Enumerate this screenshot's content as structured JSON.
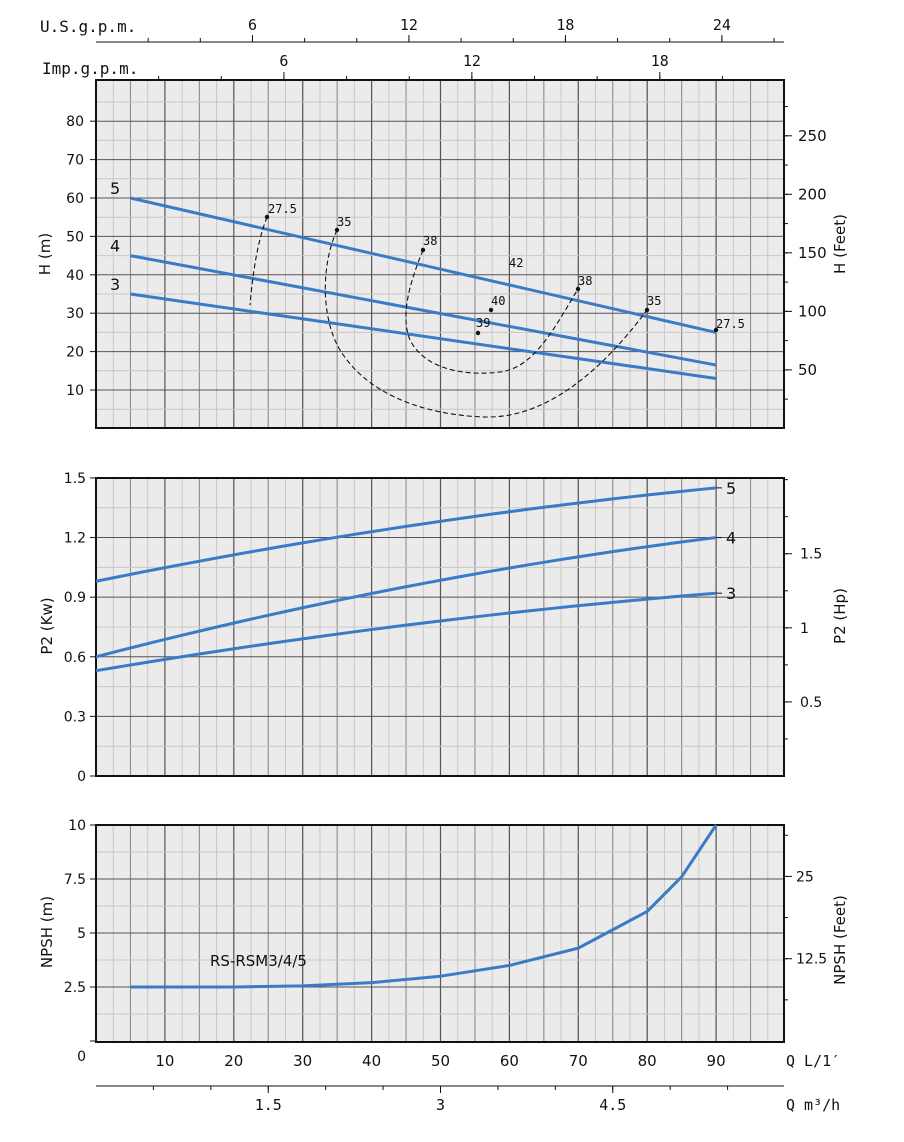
{
  "colors": {
    "curve": "#3a7bc8",
    "grid": "#8a8a8a",
    "minor": "#c8c8c8",
    "plot_bg": "#ebebeb",
    "dashed": "#111111"
  },
  "chart_data": [
    {
      "type": "line",
      "id": "head",
      "ylabel_left": "H (m)",
      "ylabel_right": "H (Feet)",
      "ylim": [
        0,
        90
      ],
      "xlim": [
        0,
        100
      ],
      "yticks_left": [
        "80",
        "70",
        "60",
        "50",
        "40",
        "30",
        "20",
        "10"
      ],
      "yticks_right": [
        "250",
        "200",
        "150",
        "100",
        "50"
      ],
      "series": [
        {
          "name": "5",
          "x": [
            5,
            90
          ],
          "y": [
            60,
            25
          ]
        },
        {
          "name": "4",
          "x": [
            5,
            90
          ],
          "y": [
            45,
            16.5
          ]
        },
        {
          "name": "3",
          "x": [
            5,
            90
          ],
          "y": [
            35,
            13
          ]
        }
      ],
      "efficiency_labels": [
        {
          "text": "27.5",
          "x": 25,
          "y": 55
        },
        {
          "text": "35",
          "x": 35,
          "y": 51
        },
        {
          "text": "38",
          "x": 47,
          "y": 46.5
        },
        {
          "text": "42",
          "x": 60,
          "y": 41
        },
        {
          "text": "38",
          "x": 70,
          "y": 36.5
        },
        {
          "text": "35",
          "x": 80,
          "y": 31
        },
        {
          "text": "27.5",
          "x": 90,
          "y": 25
        },
        {
          "text": "40",
          "x": 57,
          "y": 31
        },
        {
          "text": "39",
          "x": 55,
          "y": 25
        }
      ],
      "top_axis_usgpm": [
        "6",
        "12",
        "18",
        "24"
      ],
      "top_axis_impgpm": [
        "6",
        "12",
        "18"
      ],
      "top_axis_usgpm_label": "U.S.g.p.m.",
      "top_axis_impgpm_label": "Imp.g.p.m."
    },
    {
      "type": "line",
      "id": "power",
      "ylabel_left": "P2 (Kw)",
      "ylabel_right": "P2 (Hp)",
      "ylim": [
        0,
        1.5
      ],
      "yticks_left": [
        "1.5",
        "1.2",
        "0.9",
        "0.6",
        "0.3",
        "0"
      ],
      "yticks_right": [
        "1.5",
        "1",
        "0.5"
      ],
      "series": [
        {
          "name": "5",
          "x": [
            0,
            90
          ],
          "y": [
            0.98,
            1.45
          ]
        },
        {
          "name": "4",
          "x": [
            0,
            90
          ],
          "y": [
            0.6,
            1.2
          ]
        },
        {
          "name": "3",
          "x": [
            0,
            90
          ],
          "y": [
            0.53,
            0.92
          ]
        }
      ]
    },
    {
      "type": "line",
      "id": "npsh",
      "ylabel_left": "NPSH (m)",
      "ylabel_right": "NPSH (Feet)",
      "ylim": [
        0,
        10
      ],
      "yticks_left": [
        "10",
        "7.5",
        "5",
        "2.5",
        "0"
      ],
      "yticks_right": [
        "25",
        "12.5"
      ],
      "series": [
        {
          "name": "RS-RSM3/4/5",
          "x": [
            5,
            20,
            30,
            40,
            50,
            60,
            70,
            80,
            85,
            90
          ],
          "y": [
            2.5,
            2.5,
            2.55,
            2.7,
            3,
            3.5,
            4.3,
            6,
            7.6,
            10
          ]
        }
      ],
      "legend_text": "RS-RSM3/4/5",
      "xticks": [
        "10",
        "20",
        "30",
        "40",
        "50",
        "60",
        "70",
        "80",
        "90"
      ],
      "xlabel": "Q L/1′",
      "xticks2": [
        "1.5",
        "3",
        "4.5"
      ],
      "xlabel2": "Q m³/h"
    }
  ]
}
